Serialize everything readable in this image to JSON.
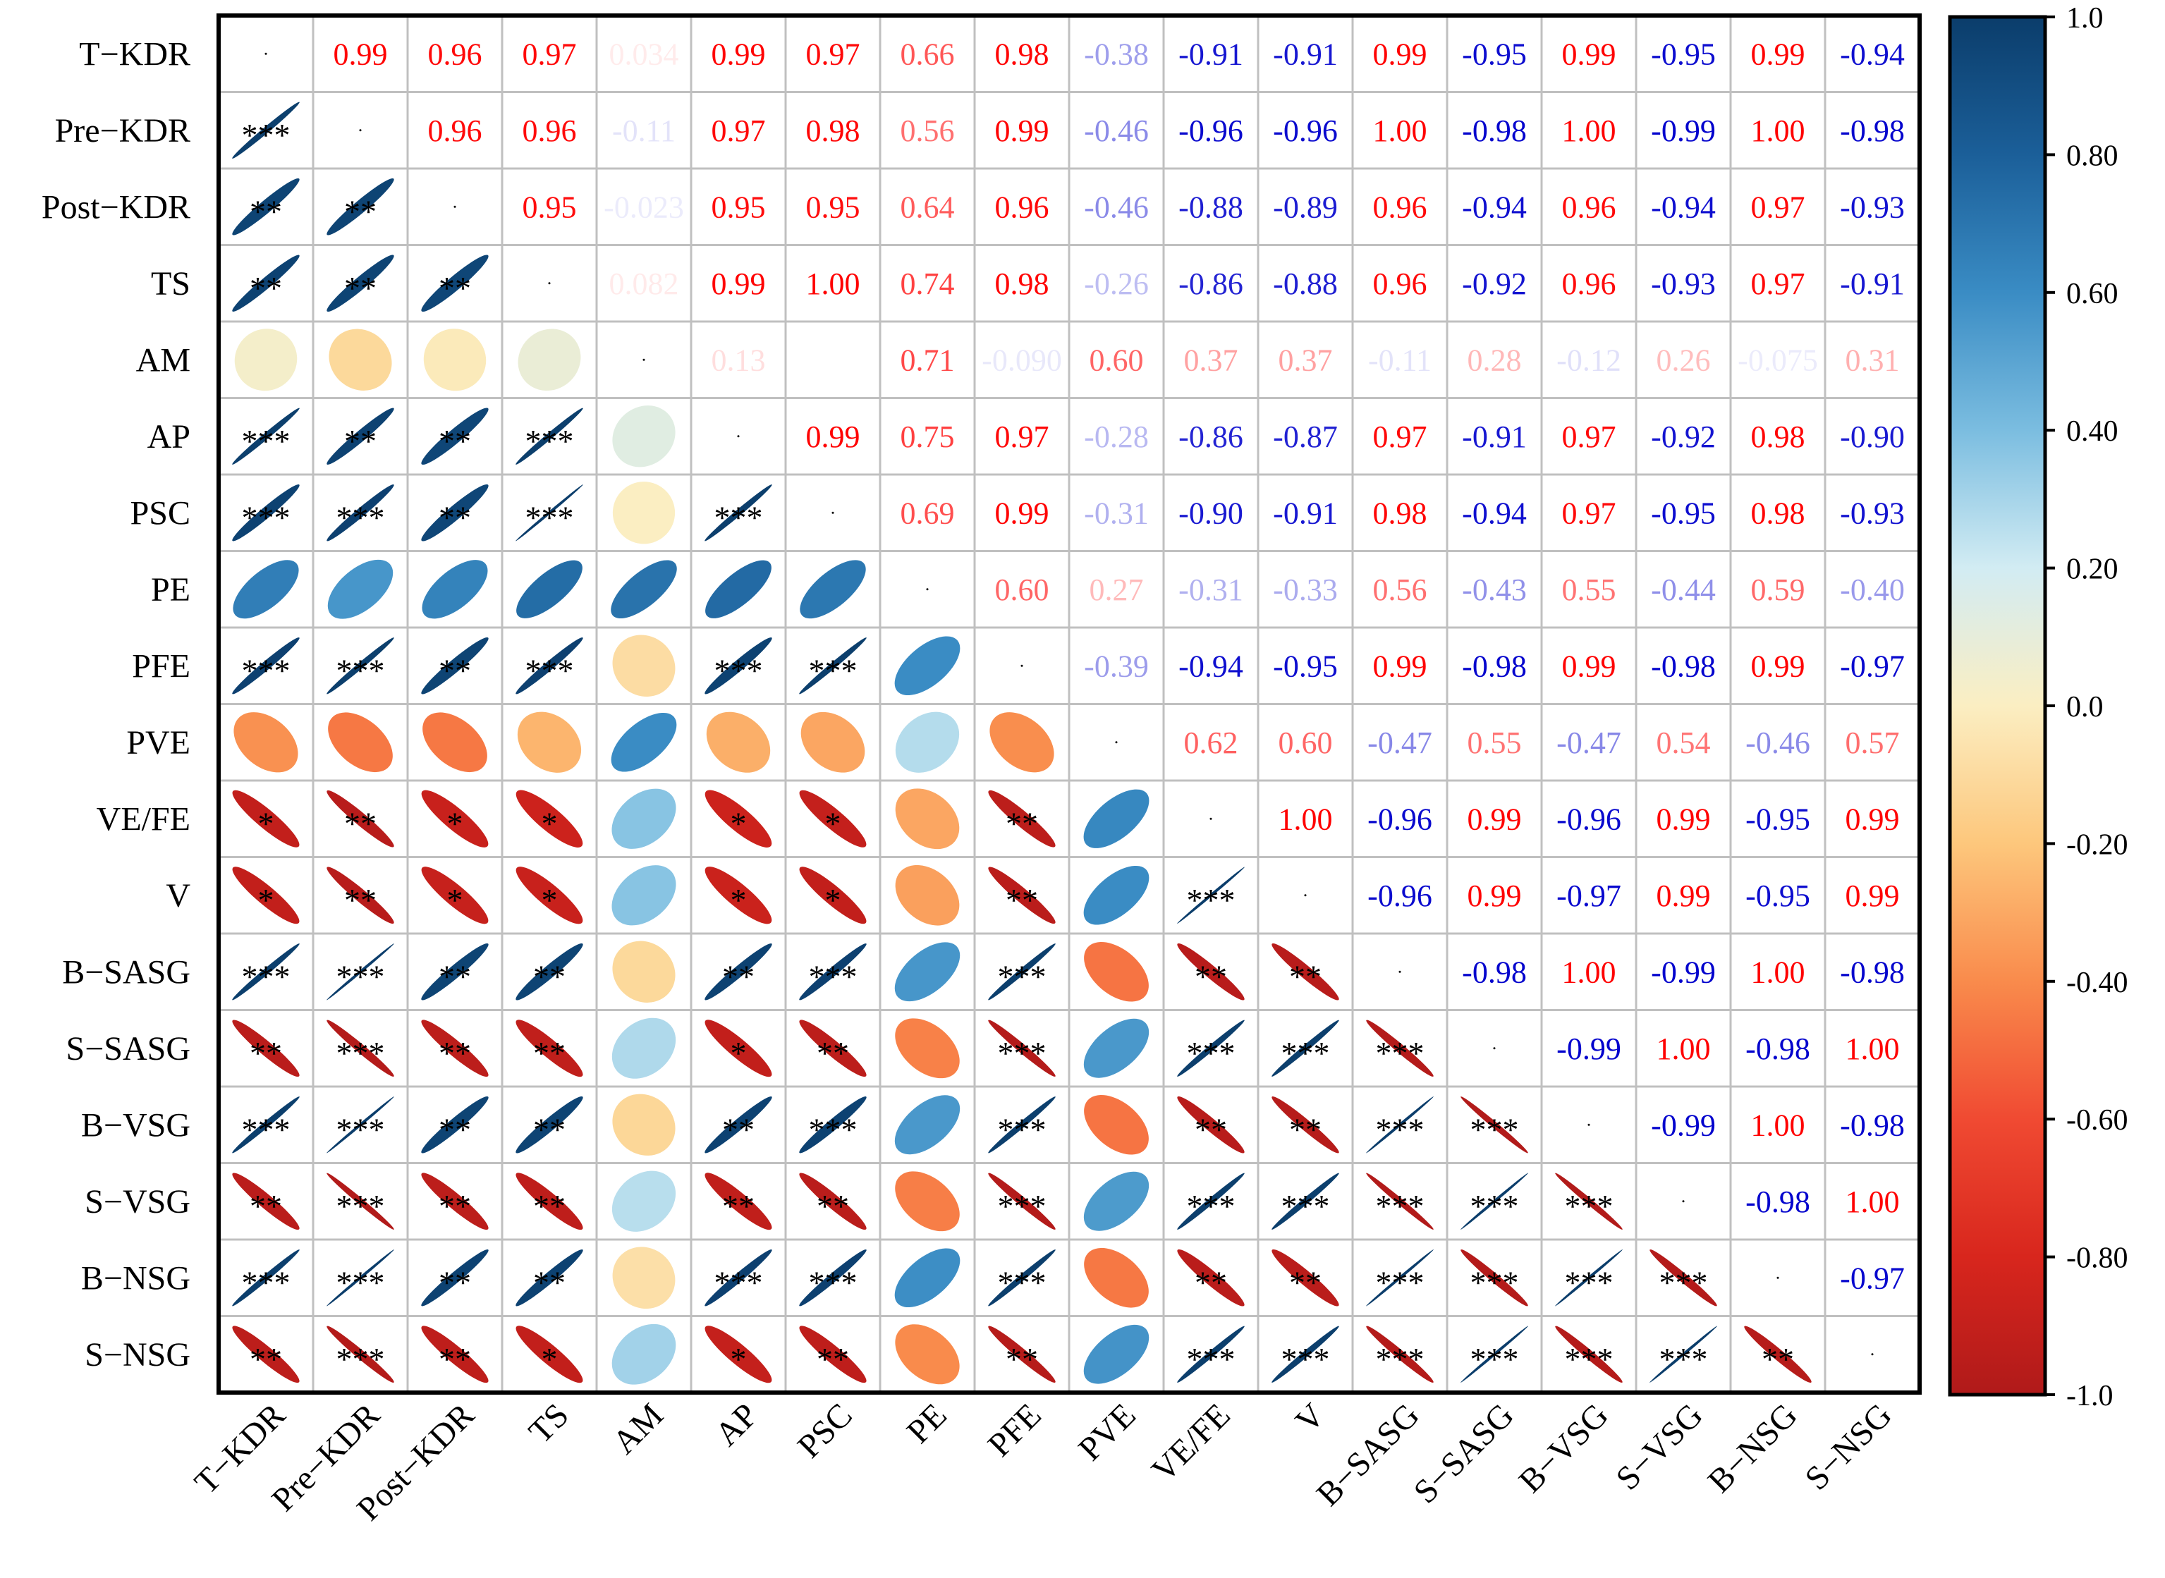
{
  "chart_data": {
    "type": "heatmap",
    "subtype": "correlation-matrix (upper: coefficients, lower: ellipses with significance stars)",
    "variables": [
      "T−KDR",
      "Pre−KDR",
      "Post−KDR",
      "TS",
      "AM",
      "AP",
      "PSC",
      "PE",
      "PFE",
      "PVE",
      "VE/FE",
      "V",
      "B−SASG",
      "S−SASG",
      "B−VSG",
      "S−VSG",
      "B−NSG",
      "S−NSG"
    ],
    "upper": [
      [
        "0.99",
        "0.96",
        "0.97",
        "0.034",
        "0.99",
        "0.97",
        "0.66",
        "0.98",
        "-0.38",
        "-0.91",
        "-0.91",
        "0.99",
        "-0.95",
        "0.99",
        "-0.95",
        "0.99",
        "-0.94"
      ],
      [
        "0.96",
        "0.96",
        "-0.11",
        "0.97",
        "0.98",
        "0.56",
        "0.99",
        "-0.46",
        "-0.96",
        "-0.96",
        "1.00",
        "-0.98",
        "1.00",
        "-0.99",
        "1.00",
        "-0.98"
      ],
      [
        "0.95",
        "-0.023",
        "0.95",
        "0.95",
        "0.64",
        "0.96",
        "-0.46",
        "-0.88",
        "-0.89",
        "0.96",
        "-0.94",
        "0.96",
        "-0.94",
        "0.97",
        "-0.93"
      ],
      [
        "0.082",
        "0.99",
        "1.00",
        "0.74",
        "0.98",
        "-0.26",
        "-0.86",
        "-0.88",
        "0.96",
        "-0.92",
        "0.96",
        "-0.93",
        "0.97",
        "-0.91"
      ],
      [
        "0.13",
        "",
        "0.71",
        "-0.090",
        "0.60",
        "0.37",
        "0.37",
        "-0.11",
        "0.28",
        "-0.12",
        "0.26",
        "-0.075",
        "0.31"
      ],
      [
        "0.99",
        "0.75",
        "0.97",
        "-0.28",
        "-0.86",
        "-0.87",
        "0.97",
        "-0.91",
        "0.97",
        "-0.92",
        "0.98",
        "-0.90"
      ],
      [
        "0.69",
        "0.99",
        "-0.31",
        "-0.90",
        "-0.91",
        "0.98",
        "-0.94",
        "0.97",
        "-0.95",
        "0.98",
        "-0.93"
      ],
      [
        "0.60",
        "0.27",
        "-0.31",
        "-0.33",
        "0.56",
        "-0.43",
        "0.55",
        "-0.44",
        "0.59",
        "-0.40"
      ],
      [
        "-0.39",
        "-0.94",
        "-0.95",
        "0.99",
        "-0.98",
        "0.99",
        "-0.98",
        "0.99",
        "-0.97"
      ],
      [
        "0.62",
        "0.60",
        "-0.47",
        "0.55",
        "-0.47",
        "0.54",
        "-0.46",
        "0.57"
      ],
      [
        "1.00",
        "-0.96",
        "0.99",
        "-0.96",
        "0.99",
        "-0.95",
        "0.99"
      ],
      [
        "-0.96",
        "0.99",
        "-0.97",
        "0.99",
        "-0.95",
        "0.99"
      ],
      [
        "-0.98",
        "1.00",
        "-0.99",
        "1.00",
        "-0.98"
      ],
      [
        "-0.99",
        "1.00",
        "-0.98",
        "1.00"
      ],
      [
        "-0.99",
        "1.00",
        "-0.98"
      ],
      [
        "-0.98",
        "1.00"
      ],
      [
        "-0.97"
      ]
    ],
    "stars": [
      [],
      [
        "***"
      ],
      [
        "**",
        "**"
      ],
      [
        "**",
        "**",
        "**"
      ],
      [
        "",
        "",
        "",
        ""
      ],
      [
        "***",
        "**",
        "**",
        "***",
        ""
      ],
      [
        "***",
        "***",
        "**",
        "***",
        "",
        "***"
      ],
      [
        "",
        "",
        "",
        "",
        "",
        "",
        ""
      ],
      [
        "***",
        "***",
        "**",
        "***",
        "",
        "***",
        "***",
        ""
      ],
      [
        "",
        "",
        "",
        "",
        "",
        "",
        "",
        "",
        ""
      ],
      [
        "*",
        "**",
        "*",
        "*",
        "",
        "*",
        "*",
        "",
        "**",
        ""
      ],
      [
        "*",
        "**",
        "*",
        "*",
        "",
        "*",
        "*",
        "",
        "**",
        "",
        "***"
      ],
      [
        "***",
        "***",
        "**",
        "**",
        "",
        "**",
        "***",
        "",
        "***",
        "",
        "**",
        "**"
      ],
      [
        "**",
        "***",
        "**",
        "**",
        "",
        "*",
        "**",
        "",
        "***",
        "",
        "***",
        "***",
        "***"
      ],
      [
        "***",
        "***",
        "**",
        "**",
        "",
        "**",
        "***",
        "",
        "***",
        "",
        "**",
        "**",
        "***",
        "***"
      ],
      [
        "**",
        "***",
        "**",
        "**",
        "",
        "**",
        "**",
        "",
        "***",
        "",
        "***",
        "***",
        "***",
        "***",
        "***"
      ],
      [
        "***",
        "***",
        "**",
        "**",
        "",
        "***",
        "***",
        "",
        "***",
        "",
        "**",
        "**",
        "***",
        "***",
        "***",
        "***"
      ],
      [
        "**",
        "***",
        "**",
        "*",
        "",
        "*",
        "**",
        "",
        "**",
        "",
        "***",
        "***",
        "***",
        "***",
        "***",
        "***",
        "**"
      ]
    ],
    "colorbar": {
      "range": [
        -1,
        1
      ],
      "ticks": [
        "1.0",
        "0.80",
        "0.60",
        "0.40",
        "0.20",
        "0.0",
        "-0.20",
        "-0.40",
        "-0.60",
        "-0.80",
        "-1.0"
      ],
      "colors": [
        "#0b3d6b",
        "#1b5f99",
        "#3a8cc4",
        "#7bbde0",
        "#d2ecf3",
        "#fbeec2",
        "#fdc77c",
        "#f98b4c",
        "#f04a32",
        "#d8261d",
        "#b01a1a"
      ]
    },
    "text_colors": {
      "positive": "#ff0000",
      "negative": "#0000cc"
    }
  }
}
